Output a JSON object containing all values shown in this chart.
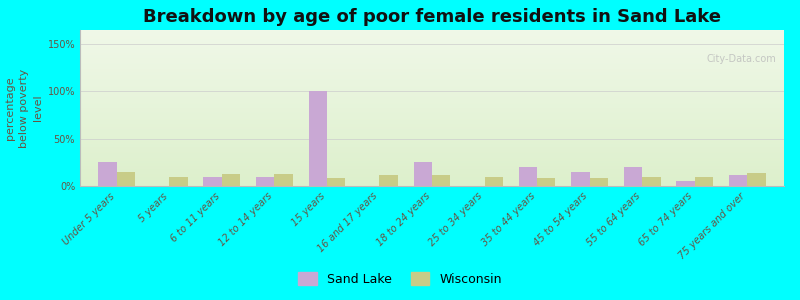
{
  "title": "Breakdown by age of poor female residents in Sand Lake",
  "ylabel": "percentage\nbelow poverty\nlevel",
  "categories": [
    "Under 5 years",
    "5 years",
    "6 to 11 years",
    "12 to 14 years",
    "15 years",
    "16 and 17 years",
    "18 to 24 years",
    "25 to 34 years",
    "35 to 44 years",
    "45 to 54 years",
    "55 to 64 years",
    "65 to 74 years",
    "75 years and over"
  ],
  "sand_lake": [
    25,
    0,
    10,
    10,
    100,
    0,
    25,
    0,
    20,
    15,
    20,
    5,
    12
  ],
  "wisconsin": [
    15,
    10,
    13,
    13,
    8,
    12,
    12,
    10,
    8,
    8,
    10,
    10,
    14
  ],
  "sand_lake_color": "#c9a8d4",
  "wisconsin_color": "#c8cc88",
  "outer_bg": "#00ffff",
  "plot_bg": "#e8f5e0",
  "yticks": [
    0,
    50,
    100,
    150
  ],
  "ytick_labels": [
    "0%",
    "50%",
    "100%",
    "150%"
  ],
  "ylim": [
    0,
    165
  ],
  "bar_width": 0.35,
  "title_fontsize": 13,
  "axis_fontsize": 8,
  "tick_fontsize": 7,
  "legend_fontsize": 9
}
